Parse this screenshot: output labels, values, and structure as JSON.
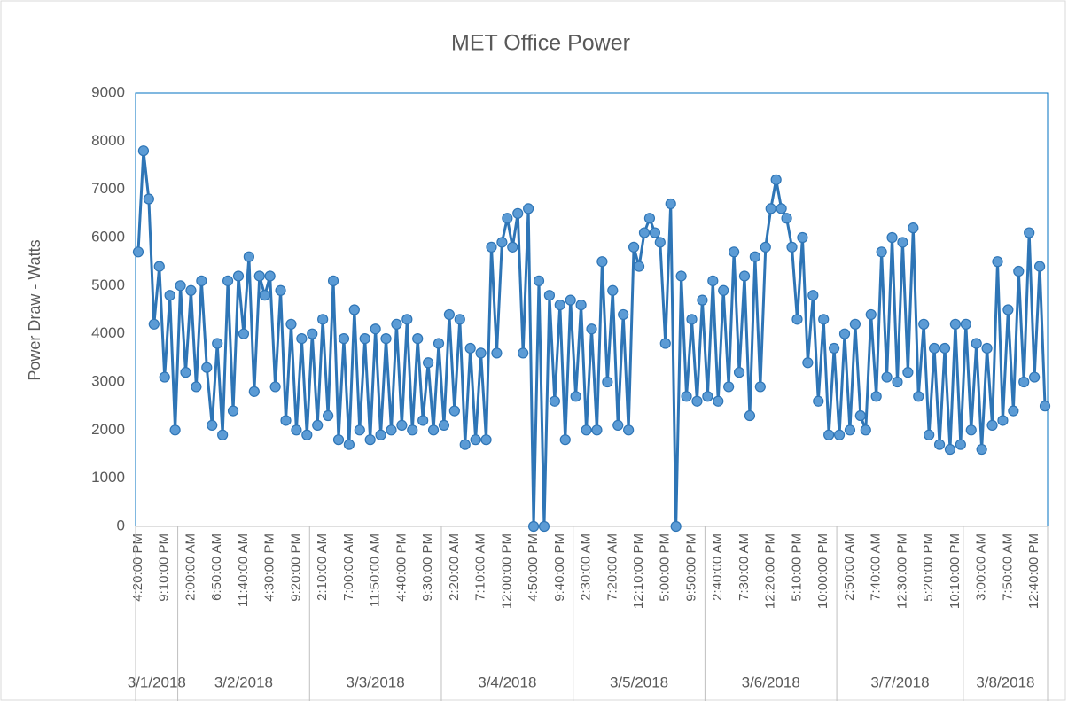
{
  "chart_data": {
    "type": "line",
    "title": "MET Office Power",
    "y_label": "Power Draw - Watts",
    "categories": [
      "4:20:00 PM",
      null,
      null,
      null,
      null,
      "9:10:00 PM",
      null,
      null,
      null,
      null,
      "2:00:00 AM",
      null,
      null,
      null,
      null,
      "6:50:00 AM",
      null,
      null,
      null,
      null,
      "11:40:00 AM",
      null,
      null,
      null,
      null,
      "4:30:00 PM",
      null,
      null,
      null,
      null,
      "9:20:00 PM",
      null,
      null,
      null,
      null,
      "2:10:00 AM",
      null,
      null,
      null,
      null,
      "7:00:00 AM",
      null,
      null,
      null,
      null,
      "11:50:00 AM",
      null,
      null,
      null,
      null,
      "4:40:00 PM",
      null,
      null,
      null,
      null,
      "9:30:00 PM",
      null,
      null,
      null,
      null,
      "2:20:00 AM",
      null,
      null,
      null,
      null,
      "7:10:00 AM",
      null,
      null,
      null,
      null,
      "12:00:00 PM",
      null,
      null,
      null,
      null,
      "4:50:00 PM",
      null,
      null,
      null,
      null,
      "9:40:00 PM",
      null,
      null,
      null,
      null,
      "2:30:00 AM",
      null,
      null,
      null,
      null,
      "7:20:00 AM",
      null,
      null,
      null,
      null,
      "12:10:00 PM",
      null,
      null,
      null,
      null,
      "5:00:00 PM",
      null,
      null,
      null,
      null,
      "9:50:00 PM",
      null,
      null,
      null,
      null,
      "2:40:00 AM",
      null,
      null,
      null,
      null,
      "7:30:00 AM",
      null,
      null,
      null,
      null,
      "12:20:00 PM",
      null,
      null,
      null,
      null,
      "5:10:00 PM",
      null,
      null,
      null,
      null,
      "10:00:00 PM",
      null,
      null,
      null,
      null,
      "2:50:00 AM",
      null,
      null,
      null,
      null,
      "7:40:00 AM",
      null,
      null,
      null,
      null,
      "12:30:00 PM",
      null,
      null,
      null,
      null,
      "5:20:00 PM",
      null,
      null,
      null,
      null,
      "10:10:00 PM",
      null,
      null,
      null,
      null,
      "3:00:00 AM",
      null,
      null,
      null,
      null,
      "7:50:00 AM",
      null,
      null,
      null,
      null,
      "12:40:00 PM",
      null,
      null
    ],
    "date_groups": [
      {
        "label": "3/1/2018",
        "count": 8
      },
      {
        "label": "3/2/2018",
        "count": 25
      },
      {
        "label": "3/3/2018",
        "count": 25
      },
      {
        "label": "3/4/2018",
        "count": 25
      },
      {
        "label": "3/5/2018",
        "count": 25
      },
      {
        "label": "3/6/2018",
        "count": 25
      },
      {
        "label": "3/7/2018",
        "count": 24
      },
      {
        "label": "3/8/2018",
        "count": 16
      }
    ],
    "values": [
      5700,
      7800,
      6800,
      4200,
      5400,
      3100,
      4800,
      2000,
      5000,
      3200,
      4900,
      2900,
      5100,
      3300,
      2100,
      3800,
      1900,
      5100,
      2400,
      5200,
      4000,
      5600,
      2800,
      5200,
      4800,
      5200,
      2900,
      4900,
      2200,
      4200,
      2000,
      3900,
      1900,
      4000,
      2100,
      4300,
      2300,
      5100,
      1800,
      3900,
      1700,
      4500,
      2000,
      3900,
      1800,
      4100,
      1900,
      3900,
      2000,
      4200,
      2100,
      4300,
      2000,
      3900,
      2200,
      3400,
      2000,
      3800,
      2100,
      4400,
      2400,
      4300,
      1700,
      3700,
      1800,
      3600,
      1800,
      5800,
      3600,
      5900,
      6400,
      5800,
      6500,
      3600,
      6600,
      0,
      5100,
      0,
      4800,
      2600,
      4600,
      1800,
      4700,
      2700,
      4600,
      2000,
      4100,
      2000,
      5500,
      3000,
      4900,
      2100,
      4400,
      2000,
      5800,
      5400,
      6100,
      6400,
      6100,
      5900,
      3800,
      6700,
      0,
      5200,
      2700,
      4300,
      2600,
      4700,
      2700,
      5100,
      2600,
      4900,
      2900,
      5700,
      3200,
      5200,
      2300,
      5600,
      2900,
      5800,
      6600,
      7200,
      6600,
      6400,
      5800,
      4300,
      6000,
      3400,
      4800,
      2600,
      4300,
      1900,
      3700,
      1900,
      4000,
      2000,
      4200,
      2300,
      2000,
      4400,
      2700,
      5700,
      3100,
      6000,
      3000,
      5900,
      3200,
      6200,
      2700,
      4200,
      1900,
      3700,
      1700,
      3700,
      1600,
      4200,
      1700,
      4200,
      2000,
      3800,
      1600,
      3700,
      2100,
      5500,
      2200,
      4500,
      2400,
      5300,
      3000,
      6100,
      3100,
      5400,
      2500
    ],
    "color": "#2e75b6",
    "marker_color": "#5b9bd5",
    "ylim": [
      0,
      9000
    ],
    "yticks": [
      0,
      1000,
      2000,
      3000,
      4000,
      5000,
      6000,
      7000,
      8000,
      9000
    ],
    "grid": false
  }
}
